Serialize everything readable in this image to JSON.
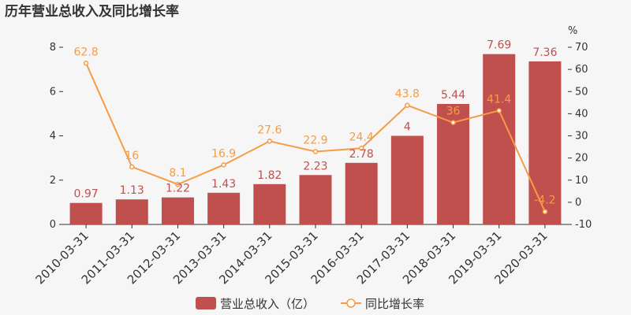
{
  "chart_data": {
    "type": "bar",
    "title": "历年营业总收入及同比增长率",
    "categories": [
      "2010-03-31",
      "2011-03-31",
      "2012-03-31",
      "2013-03-31",
      "2014-03-31",
      "2015-03-31",
      "2016-03-31",
      "2017-03-31",
      "2018-03-31",
      "2019-03-31",
      "2020-03-31"
    ],
    "series": [
      {
        "name": "营业总收入（亿）",
        "type": "bar",
        "axis": "left",
        "values": [
          0.97,
          1.13,
          1.22,
          1.43,
          1.82,
          2.23,
          2.78,
          4,
          5.44,
          7.69,
          7.36
        ],
        "labels": [
          "0.97",
          "1.13",
          "1.22",
          "1.43",
          "1.82",
          "2.23",
          "2.78",
          "4",
          "5.44",
          "7.69",
          "7.36"
        ]
      },
      {
        "name": "同比增长率",
        "type": "line",
        "axis": "right",
        "values": [
          62.8,
          16,
          8.1,
          16.9,
          27.6,
          22.9,
          24.4,
          43.8,
          36,
          41.4,
          -4.2
        ],
        "labels": [
          "62.8",
          "16",
          "8.1",
          "16.9",
          "27.6",
          "22.9",
          "24.4",
          "43.8",
          "36",
          "41.4",
          "-4.2"
        ]
      }
    ],
    "y_left": {
      "min": 0,
      "max": 8,
      "ticks": [
        "0",
        "2",
        "4",
        "6",
        "8"
      ]
    },
    "y_right": {
      "min": -10,
      "max": 70,
      "unit": "%",
      "ticks": [
        "-10",
        "0",
        "10",
        "20",
        "30",
        "40",
        "50",
        "60",
        "70"
      ]
    },
    "grid": false,
    "legend_position": "bottom-center",
    "colors": {
      "bar": "#c0504d",
      "line": "#f59c45",
      "bar_label": "#c0504d",
      "line_label": "#f59c45"
    }
  }
}
